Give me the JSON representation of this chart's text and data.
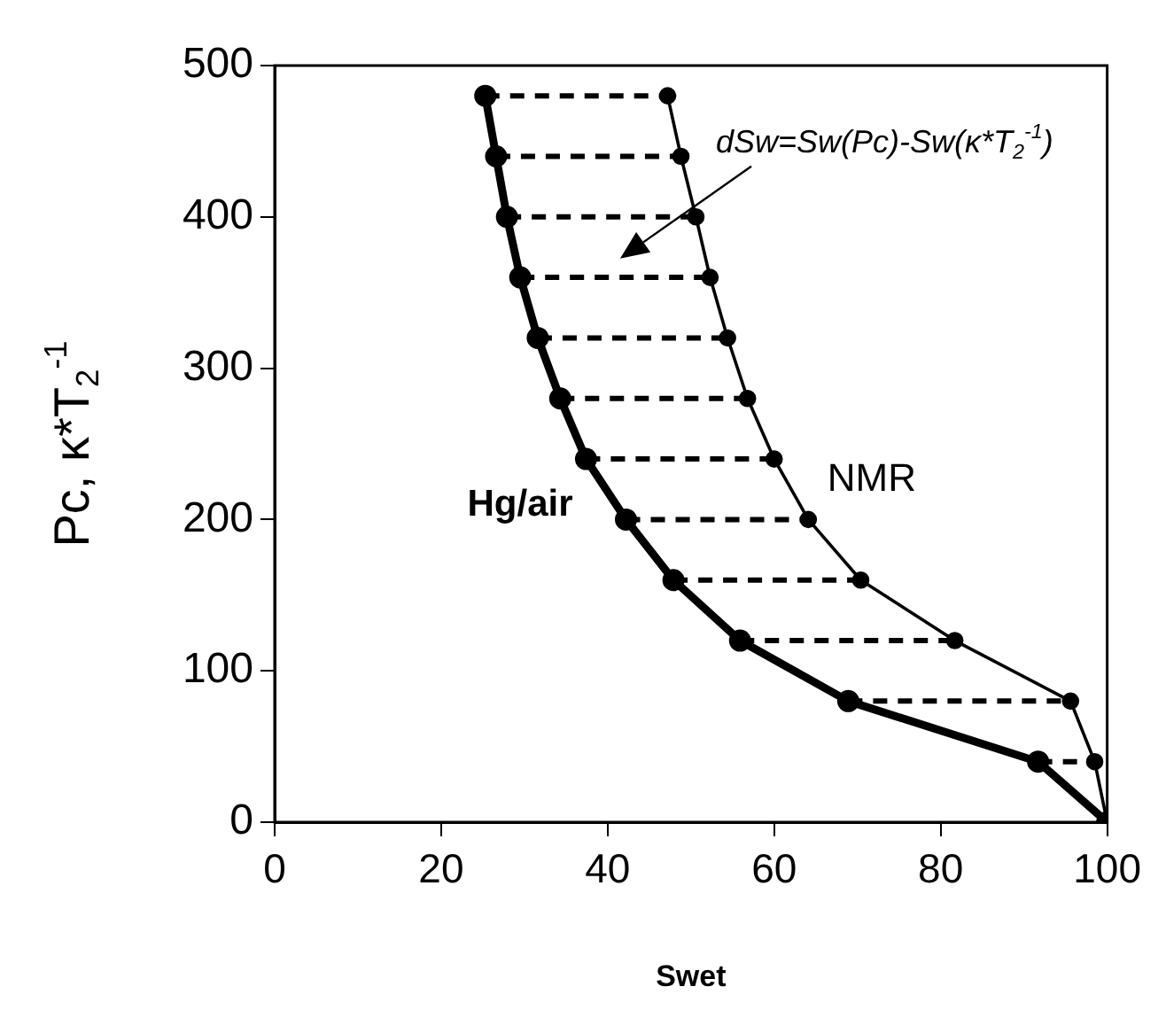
{
  "chart_data": {
    "type": "line",
    "xlabel": "Swet",
    "ylabel": "Pc, κ*T$_{2}$$^{-1}$",
    "xlim": [
      0,
      100
    ],
    "xticks": [
      0,
      20,
      40,
      60,
      80,
      100
    ],
    "ylim": [
      0,
      500
    ],
    "yticks": [
      0,
      100,
      200,
      300,
      400,
      500
    ],
    "grid": false,
    "legend": false,
    "marker": "circle",
    "line_style": "solid",
    "series": [
      {
        "name": "Hg/air",
        "color": "#000000",
        "x": [
          100,
          91.7,
          68.9,
          55.9,
          47.9,
          42.2,
          37.4,
          34.3,
          31.6,
          29.5,
          27.9,
          26.6,
          25.3
        ],
        "values": [
          0,
          40,
          80,
          120,
          160,
          200,
          240,
          280,
          320,
          360,
          400,
          440,
          480
        ]
      },
      {
        "name": "NMR",
        "color": "#000000",
        "x": [
          100,
          98.5,
          95.6,
          81.7,
          70.4,
          64.1,
          60.0,
          56.8,
          54.4,
          52.3,
          50.6,
          48.8,
          47.2
        ],
        "values": [
          0,
          40,
          80,
          120,
          160,
          200,
          240,
          280,
          320,
          360,
          400,
          440,
          480
        ]
      },
      {
        "color": "#000000",
        "line_style": "dashed",
        "marker": "none",
        "x": [
          91.7,
          98.5
        ],
        "values": [
          40,
          40
        ]
      },
      {
        "color": "#000000",
        "line_style": "dashed",
        "marker": "none",
        "x": [
          68.9,
          95.6
        ],
        "values": [
          80,
          80
        ]
      },
      {
        "color": "#000000",
        "line_style": "dashed",
        "marker": "none",
        "x": [
          55.9,
          81.7
        ],
        "values": [
          120,
          120
        ]
      },
      {
        "color": "#000000",
        "line_style": "dashed",
        "marker": "none",
        "x": [
          47.9,
          70.4
        ],
        "values": [
          160,
          160
        ]
      },
      {
        "color": "#000000",
        "line_style": "dashed",
        "marker": "none",
        "x": [
          42.2,
          64.1
        ],
        "values": [
          200,
          200
        ]
      },
      {
        "color": "#000000",
        "line_style": "dashed",
        "marker": "none",
        "x": [
          37.4,
          60.0
        ],
        "values": [
          240,
          240
        ]
      },
      {
        "color": "#000000",
        "line_style": "dashed",
        "marker": "none",
        "x": [
          34.3,
          56.8
        ],
        "values": [
          280,
          280
        ]
      },
      {
        "color": "#000000",
        "line_style": "dashed",
        "marker": "none",
        "x": [
          31.6,
          54.4
        ],
        "values": [
          320,
          320
        ]
      },
      {
        "color": "#000000",
        "line_style": "dashed",
        "marker": "none",
        "x": [
          29.5,
          52.3
        ],
        "values": [
          360,
          360
        ]
      },
      {
        "color": "#000000",
        "line_style": "dashed",
        "marker": "none",
        "x": [
          27.9,
          50.6
        ],
        "values": [
          400,
          400
        ]
      },
      {
        "color": "#000000",
        "line_style": "dashed",
        "marker": "none",
        "x": [
          26.6,
          48.8
        ],
        "values": [
          440,
          440
        ]
      },
      {
        "color": "#000000",
        "line_style": "dashed",
        "marker": "none",
        "x": [
          25.3,
          47.2
        ],
        "values": [
          480,
          480
        ]
      }
    ],
    "annotations": [
      "dSw=Sw(Pc)-Sw(κ*T$_{2}$$^{-1}$)"
    ]
  }
}
